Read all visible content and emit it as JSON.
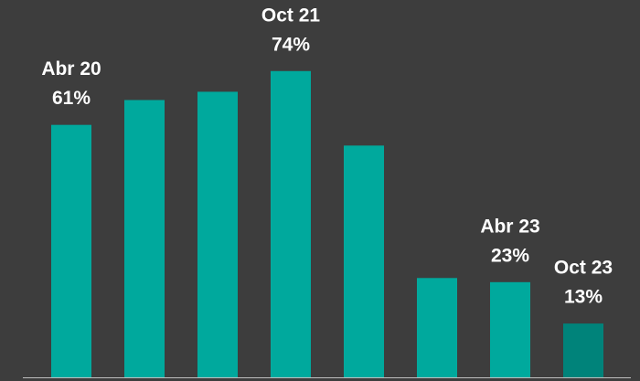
{
  "chart_data": {
    "type": "bar",
    "categories": [
      "Abr 20",
      null,
      null,
      "Oct 21",
      null,
      null,
      "Abr 23",
      "Oct 23"
    ],
    "values": [
      61,
      67,
      69,
      74,
      56,
      24,
      23,
      13
    ],
    "value_labels": [
      "61%",
      null,
      null,
      "74%",
      null,
      null,
      "23%",
      "13%"
    ],
    "colors": [
      "#00a99d",
      "#00a99d",
      "#00a99d",
      "#00a99d",
      "#00a99d",
      "#00a99d",
      "#00a99d",
      "#00837a"
    ]
  }
}
